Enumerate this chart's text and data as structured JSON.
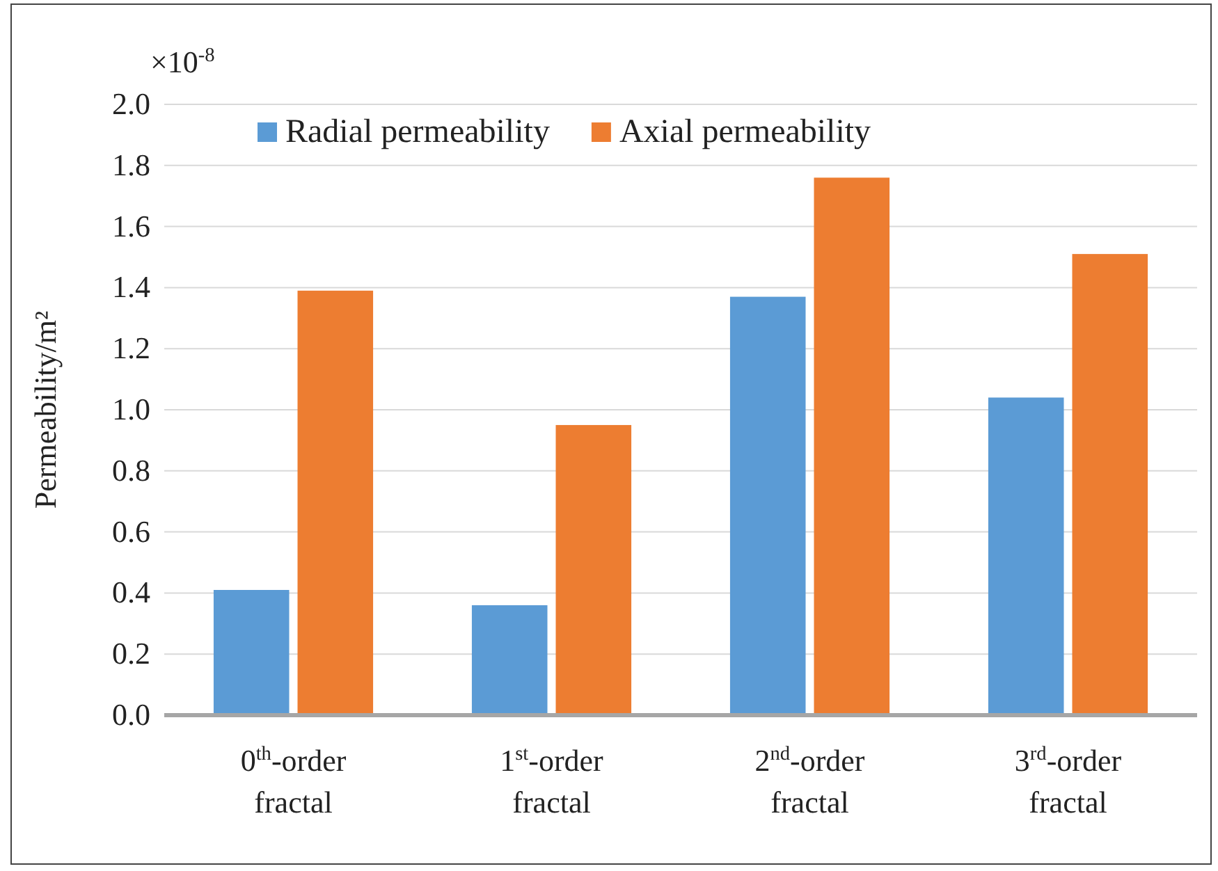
{
  "chart_data": {
    "type": "bar",
    "ylabel": "Permeability/m²",
    "categories": [
      "0$^{th}$-order fractal",
      "1$^{st}$-order fractal",
      "2$^{nd}$-order fractal",
      "3$^{rd}$-order fractal"
    ],
    "series": [
      {
        "name": "Radial permeability",
        "color": "#5b9bd5",
        "values": [
          0.41,
          0.36,
          1.37,
          1.04
        ]
      },
      {
        "name": "Axial permeability",
        "color": "#ed7d31",
        "values": [
          1.39,
          0.95,
          1.76,
          1.51
        ]
      }
    ],
    "ylim": [
      0,
      2
    ],
    "yticks": [
      {
        "value": 0,
        "label": "0.0"
      },
      {
        "value": 0.2,
        "label": "0.2"
      },
      {
        "value": 0.4,
        "label": "0.4"
      },
      {
        "value": 0.6,
        "label": "0.6"
      },
      {
        "value": 0.8,
        "label": "0.8"
      },
      {
        "value": 1,
        "label": "1.0"
      },
      {
        "value": 1.2,
        "label": "1.2"
      },
      {
        "value": 1.4,
        "label": "1.4"
      },
      {
        "value": 1.6,
        "label": "1.6"
      },
      {
        "value": 1.8,
        "label": "1.8"
      },
      {
        "value": 2,
        "label": "2.0"
      }
    ],
    "annotations": [
      "×10$^{-8}$"
    ],
    "grid": "y",
    "legend": "top"
  }
}
